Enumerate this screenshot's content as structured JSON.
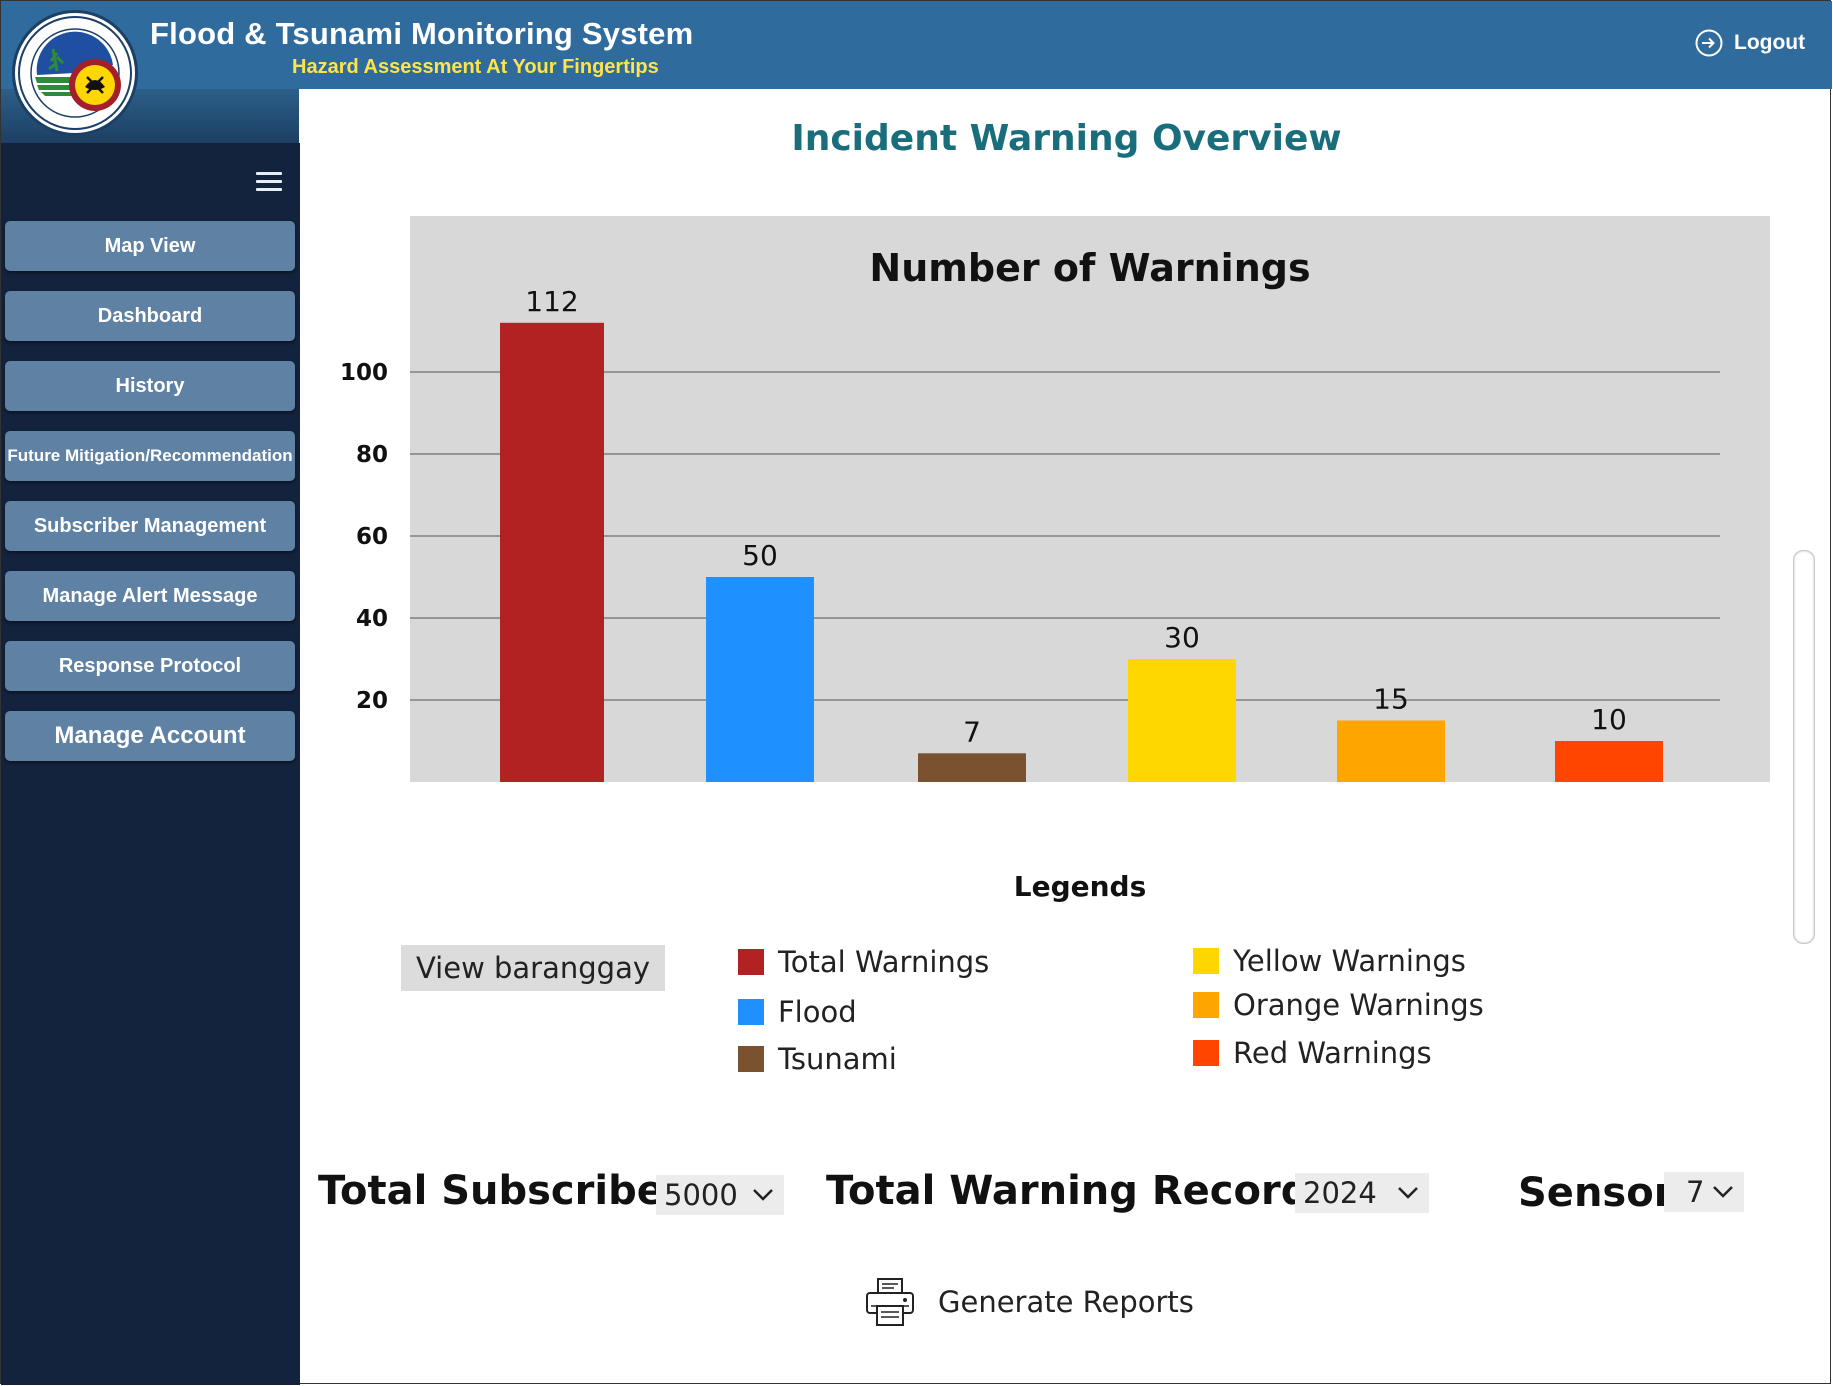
{
  "header": {
    "title": "Flood & Tsunami Monitoring System",
    "subtitle": "Hazard Assessment At Your Fingertips",
    "logout_label": "Logout"
  },
  "sidebar": {
    "items": [
      {
        "label": "Map View"
      },
      {
        "label": "Dashboard"
      },
      {
        "label": "History"
      },
      {
        "label": "Future Mitigation/Recommendation"
      },
      {
        "label": "Subscriber Management"
      },
      {
        "label": "Manage Alert Message"
      },
      {
        "label": "Response Protocol"
      },
      {
        "label": "Manage Account"
      }
    ]
  },
  "main": {
    "page_title": "Incident Warning Overview",
    "legends_title": "Legends",
    "view_barangay_label": "View baranggay",
    "stats": {
      "total_subscriber_label": "Total Subscriber",
      "total_subscriber_value": "5000",
      "total_warning_records_label": "Total Warning Records",
      "total_warning_records_value": "2024",
      "sensor_label": "Sensor",
      "sensor_value": "7"
    },
    "generate_reports_label": "Generate Reports"
  },
  "chart_data": {
    "type": "bar",
    "title": "Number of Warnings",
    "xlabel": "",
    "ylabel": "",
    "categories": [
      "Total Warnings",
      "Flood",
      "Tsunami",
      "Yellow Warnings",
      "Orange Warnings",
      "Red Warnings"
    ],
    "values": [
      112,
      50,
      7,
      30,
      15,
      10
    ],
    "colors": [
      "#b22222",
      "#1e90ff",
      "#7a5230",
      "#ffd700",
      "#ffa500",
      "#ff4500"
    ],
    "y_ticks": [
      20,
      40,
      60,
      80,
      100
    ],
    "grid": true,
    "legend": "below"
  }
}
